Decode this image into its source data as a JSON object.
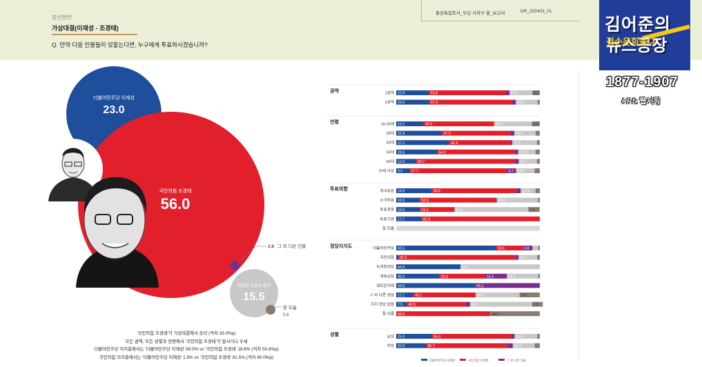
{
  "header": {
    "section_label": "총선현안",
    "section_title": "가상대결(이재성 - 조경태)",
    "question": "Q. 만약 다음 인물들이 맞붙는다면, 누구에게 투표하시겠습니까?",
    "doc_name": "총선특집조사_부산 사하구 을_보고서",
    "doc_code": "DR_202403_01"
  },
  "logo": {
    "line1": "김어준의",
    "line2": "뉴스공장",
    "accent": "겸손은힘들다",
    "range": "1877-1907",
    "sub": "ARS 웹서핑"
  },
  "colors": {
    "dem": "#1f4e9c",
    "ppp": "#e2202c",
    "other": "#7a2e8c",
    "none": "#c8c8c8",
    "dk": "#8a7a70"
  },
  "bubbles": {
    "dem": {
      "label": "더불어민주당 이재성",
      "value": "23.0"
    },
    "ppp": {
      "label": "국민의힘 조경태",
      "value": "56.0"
    },
    "other": {
      "label": "그 외 다른 인물",
      "value": "2.8"
    },
    "none": {
      "label": "적합한 인물이 없다",
      "value": "15.5"
    },
    "dk": {
      "label": "잘 모름",
      "value": "2.8"
    }
  },
  "summary": [
    "'국민의힘 조경태'가 가상대결에서 승리 (격차 33.0%p)",
    "모든 권역, 모든 성별과 연령에서 '국민의힘 조경태'가 앞서거나 우세",
    "더불어민주당 지지층에서는 '더불어민주당 이재성' 69.5% vs '국민의힘 조경태' 18.6% (격차 50.9%p)",
    "국민의힘 지지층에서는 '더불어민주당 이재성' 1.5% vs '국민의힘 조경태' 81.5% (격차 80.0%p)"
  ],
  "chart_data": {
    "type": "bar",
    "orientation": "horizontal-stacked",
    "series_names": [
      "더불어민주당 이재성",
      "국민의힘 조경태",
      "그 외 다른 인물",
      "적합한 인물이 없다",
      "잘 모름"
    ],
    "legend": [
      "더불어민주당 이재성",
      "국민의힘 조경태",
      "그 외 다른 인물"
    ],
    "groups": [
      {
        "name": "권역",
        "rows": [
          {
            "label": "1권역",
            "values": [
              22.9,
              53.8,
              2.2,
              15.9,
              5.2
            ]
          },
          {
            "label": "2권역",
            "values": [
              23.0,
              57.5,
              2.8,
              15.2,
              1.5
            ]
          }
        ]
      },
      {
        "name": "연령",
        "rows": [
          {
            "label": "18-29세",
            "values": [
              19.2,
              49.0,
              0.0,
              26.3,
              5.5
            ]
          },
          {
            "label": "30대",
            "values": [
              31.9,
              47.3,
              3.0,
              14.9,
              2.9
            ]
          },
          {
            "label": "40대",
            "values": [
              37.1,
              42.4,
              1.4,
              17.1,
              2.0
            ]
          },
          {
            "label": "50대",
            "values": [
              28.6,
              54.0,
              2.4,
              12.0,
              3.0
            ]
          },
          {
            "label": "60대",
            "values": [
              13.9,
              68.7,
              2.7,
              12.7,
              2.0
            ]
          },
          {
            "label": "70세 이상",
            "values": [
              9.5,
              67.7,
              6.2,
              13.0,
              3.6
            ]
          }
        ]
      },
      {
        "name": "투표의향",
        "rows": [
          {
            "label": "적극투표",
            "values": [
              24.9,
              58.6,
              3.2,
              10.3,
              3.0
            ]
          },
          {
            "label": "소극투표",
            "values": [
              16.5,
              52.5,
              1.0,
              28.8,
              1.2
            ]
          },
          {
            "label": "투표관망",
            "values": [
              16.5,
              24.1,
              0.0,
              51.4,
              7.9
            ]
          },
          {
            "label": "투표기권",
            "values": [
              17.7,
              82.3,
              0.0,
              0.0,
              0.0
            ]
          },
          {
            "label": "잘 모름",
            "values": [
              0.0,
              0.0,
              0.0,
              0.0,
              0.0
            ]
          }
        ]
      },
      {
        "name": "정당지지도",
        "rows": [
          {
            "label": "더불어민주당",
            "values": [
              69.5,
              18.6,
              6.8,
              4.0,
              1.1
            ]
          },
          {
            "label": "국민의힘",
            "values": [
              1.5,
              81.5,
              2.1,
              13.1,
              1.8
            ]
          },
          {
            "label": "녹색정의당",
            "values": [
              44.8,
              0.0,
              0.0,
              55.2,
              0.0
            ]
          },
          {
            "label": "개혁신당",
            "values": [
              30.2,
              31.6,
              15.3,
              21.9,
              1.0
            ]
          },
          {
            "label": "새로운미래",
            "values": [
              54.9,
              0.0,
              45.1,
              0.0,
              0.0
            ]
          },
          {
            "label": "그 외 다른 정당",
            "values": [
              12.1,
              43.2,
              0.0,
              30.6,
              14.1
            ]
          },
          {
            "label": "지지 정당 없음",
            "values": [
              7.5,
              40.5,
              3.5,
              43.1,
              7.5
            ]
          },
          {
            "label": "잘 모름",
            "values": [
              0.0,
              65.5,
              0.0,
              0.0,
              34.5
            ]
          }
        ]
      },
      {
        "name": "성별",
        "rows": [
          {
            "label": "남성",
            "values": [
              25.0,
              55.3,
              2.1,
              15.8,
              1.8
            ]
          },
          {
            "label": "여성",
            "values": [
              20.9,
              56.7,
              3.6,
              15.3,
              3.5
            ]
          }
        ]
      }
    ]
  }
}
